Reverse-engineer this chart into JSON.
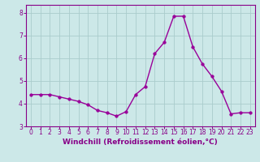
{
  "x": [
    0,
    1,
    2,
    3,
    4,
    5,
    6,
    7,
    8,
    9,
    10,
    11,
    12,
    13,
    14,
    15,
    16,
    17,
    18,
    19,
    20,
    21,
    22,
    23
  ],
  "y": [
    4.4,
    4.4,
    4.4,
    4.3,
    4.2,
    4.1,
    3.95,
    3.7,
    3.6,
    3.45,
    3.65,
    4.4,
    4.75,
    6.2,
    6.7,
    7.85,
    7.85,
    6.5,
    5.75,
    5.2,
    4.55,
    3.55,
    3.6,
    3.6
  ],
  "line_color": "#990099",
  "marker": "o",
  "marker_size": 2.5,
  "line_width": 1.0,
  "xlabel": "Windchill (Refroidissement éolien,°C)",
  "ylim": [
    3.0,
    8.35
  ],
  "xlim": [
    -0.5,
    23.5
  ],
  "yticks": [
    3,
    4,
    5,
    6,
    7,
    8
  ],
  "xticks": [
    0,
    1,
    2,
    3,
    4,
    5,
    6,
    7,
    8,
    9,
    10,
    11,
    12,
    13,
    14,
    15,
    16,
    17,
    18,
    19,
    20,
    21,
    22,
    23
  ],
  "grid_color": "#aacccc",
  "background_color": "#cce8e8",
  "spine_color": "#880088",
  "tick_color": "#880088",
  "label_color": "#880088",
  "xlabel_fontsize": 6.5,
  "tick_fontsize": 5.5
}
